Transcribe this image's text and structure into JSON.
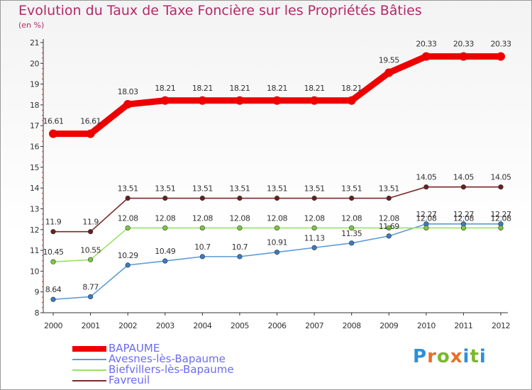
{
  "header": {
    "title": "Evolution du Taux de Taxe Foncière sur les Propriétés Bâties",
    "unit": "(en %)"
  },
  "logo": {
    "text": "Proxiti",
    "letters": [
      "P",
      "r",
      "o",
      "x",
      "i",
      "t",
      "i"
    ],
    "colors": [
      "#2f8fd8",
      "#e8702a",
      "#7ab82e",
      "#e8702a",
      "#2f8fd8",
      "#7ab82e",
      "#2f8fd8"
    ]
  },
  "chart_data": {
    "type": "line",
    "title": "Evolution du Taux de Taxe Foncière sur les Propriétés Bâties",
    "ylabel": "(en %)",
    "xlabel": "",
    "x": [
      "2000",
      "2001",
      "2002",
      "2003",
      "2004",
      "2005",
      "2006",
      "2007",
      "2008",
      "2009",
      "2010",
      "2011",
      "2012"
    ],
    "ylim": [
      8,
      21
    ],
    "yticks": [
      "8",
      "9",
      "10",
      "11",
      "12",
      "13",
      "14",
      "15",
      "16",
      "17",
      "18",
      "19",
      "20",
      "21"
    ],
    "grid": false,
    "legend_position": "bottom-left",
    "series": [
      {
        "name": "BAPAUME",
        "color": "#ee0000",
        "style": "thick",
        "values": [
          16.61,
          16.61,
          18.03,
          18.21,
          18.21,
          18.21,
          18.21,
          18.21,
          18.21,
          19.55,
          20.33,
          20.33,
          20.33
        ],
        "labels": [
          "16.61",
          "16.61",
          "18.03",
          "18.21",
          "18.21",
          "18.21",
          "18.21",
          "18.21",
          "18.21",
          "19.55",
          "20.33",
          "20.33",
          "20.33"
        ]
      },
      {
        "name": "Avesnes-lès-Bapaume",
        "color": "#5b9bd5",
        "marker": "#3a7cc0",
        "values": [
          8.64,
          8.77,
          10.29,
          10.49,
          10.7,
          10.7,
          10.91,
          11.13,
          11.35,
          11.69,
          12.27,
          12.27,
          12.27
        ],
        "labels": [
          "8.64",
          "8.77",
          "10.29",
          "10.49",
          "10.7",
          "10.7",
          "10.91",
          "11.13",
          "11.35",
          "11.69",
          "12.27",
          "12.27",
          "12.27"
        ]
      },
      {
        "name": "Biefvillers-lès-Bapaume",
        "color": "#99e266",
        "marker": "#7ac943",
        "values": [
          10.45,
          10.55,
          12.08,
          12.08,
          12.08,
          12.08,
          12.08,
          12.08,
          12.08,
          12.08,
          12.08,
          12.08,
          12.08
        ],
        "labels": [
          "10.45",
          "10.55",
          "12.08",
          "12.08",
          "12.08",
          "12.08",
          "12.08",
          "12.08",
          "12.08",
          "12.08",
          "12.08",
          "12.08",
          "12.08"
        ]
      },
      {
        "name": "Favreuil",
        "color": "#7a2a2a",
        "marker": "#6a1f1f",
        "values": [
          11.9,
          11.9,
          13.51,
          13.51,
          13.51,
          13.51,
          13.51,
          13.51,
          13.51,
          13.51,
          14.05,
          14.05,
          14.05
        ],
        "labels": [
          "11.9",
          "11.9",
          "13.51",
          "13.51",
          "13.51",
          "13.51",
          "13.51",
          "13.51",
          "13.51",
          "13.51",
          "14.05",
          "14.05",
          "14.05"
        ]
      }
    ]
  }
}
